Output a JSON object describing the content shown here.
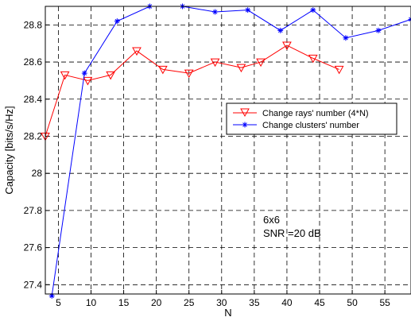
{
  "chart_data": {
    "type": "line",
    "xlabel": "N",
    "ylabel": "Capacity [bits/s/Hz]",
    "xlim": [
      3,
      59
    ],
    "ylim": [
      27.35,
      28.9
    ],
    "x_ticks": [
      5,
      10,
      15,
      20,
      25,
      30,
      35,
      40,
      45,
      50,
      55
    ],
    "y_ticks": [
      27.4,
      27.6,
      27.8,
      28,
      28.2,
      28.4,
      28.6,
      28.8
    ],
    "x_tick_labels": [
      "5",
      "10",
      "15",
      "20",
      "25",
      "30",
      "35",
      "40",
      "45",
      "50",
      "55"
    ],
    "y_tick_labels": [
      "27.4",
      "27.6",
      "27.8",
      "28",
      "28.2",
      "28.4",
      "28.6",
      "28.8"
    ],
    "grid": true,
    "legend_position": "center-right",
    "series": [
      {
        "name": "Change rays' number (4*N)",
        "color": "#ff0000",
        "marker": "triangle-down",
        "x": [
          3,
          6,
          9.5,
          13,
          17,
          21,
          25,
          29,
          33,
          36,
          40,
          44,
          48
        ],
        "y": [
          28.2,
          28.53,
          28.5,
          28.53,
          28.66,
          28.56,
          28.54,
          28.6,
          28.57,
          28.6,
          28.69,
          28.62,
          28.56
        ]
      },
      {
        "name": "Change clusters' number",
        "color": "#0000ff",
        "marker": "star",
        "x": [
          4,
          9,
          14,
          19,
          24,
          29,
          34,
          39,
          44,
          49,
          54,
          59
        ],
        "y": [
          27.34,
          28.54,
          28.82,
          28.9,
          28.9,
          28.87,
          28.88,
          28.77,
          28.88,
          28.73,
          28.77,
          28.83
        ]
      }
    ],
    "annotations": [
      "6x6",
      "SNR =20 dB"
    ]
  }
}
